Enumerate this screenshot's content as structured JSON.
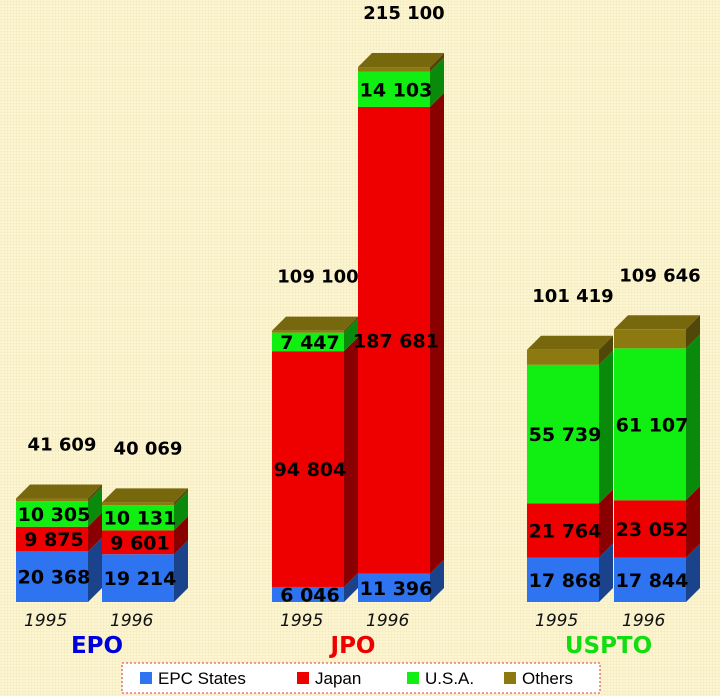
{
  "chart_data": {
    "type": "bar",
    "stacked": true,
    "three_d": true,
    "groups": [
      {
        "name": "EPO",
        "color": "#0000dd",
        "categories": [
          "1995",
          "1996"
        ],
        "totals": [
          "41 609",
          "40 069"
        ]
      },
      {
        "name": "JPO",
        "color": "#ee0000",
        "categories": [
          "1995",
          "1996"
        ],
        "totals": [
          "109 100",
          "215 100"
        ]
      },
      {
        "name": "USPTO",
        "color": "#11dd11",
        "categories": [
          "1995",
          "1996"
        ],
        "totals": [
          "101 419",
          "109 646"
        ]
      }
    ],
    "series": [
      {
        "name": "EPC States",
        "color": "#2e73f0",
        "values": [
          20368,
          19214,
          6046,
          11396,
          17868,
          17844
        ],
        "labels": [
          "20 368",
          "19 214",
          "6 046",
          "11 396",
          "17 868",
          "17 844"
        ]
      },
      {
        "name": "Japan",
        "color": "#ee0000",
        "values": [
          9875,
          9601,
          94804,
          187681,
          21764,
          23052
        ],
        "labels": [
          "9 875",
          "9 601",
          "94 804",
          "187 681",
          "21 764",
          "23 052"
        ]
      },
      {
        "name": "U.S.A.",
        "color": "#11ee11",
        "values": [
          10305,
          10131,
          7447,
          14103,
          55739,
          61107
        ],
        "labels": [
          "10 305",
          "10 131",
          "7 447",
          "14 103",
          "55 739",
          "61 107"
        ]
      },
      {
        "name": "Others",
        "color": "#8c7a10",
        "values": [
          1061,
          1123,
          803,
          1920,
          6048,
          7643
        ],
        "labels": [
          "",
          "",
          "",
          "",
          "",
          ""
        ]
      }
    ],
    "legend": {
      "position": "bottom",
      "entries": [
        "EPC States",
        "Japan",
        "U.S.A.",
        "Others"
      ]
    },
    "grid": false
  }
}
